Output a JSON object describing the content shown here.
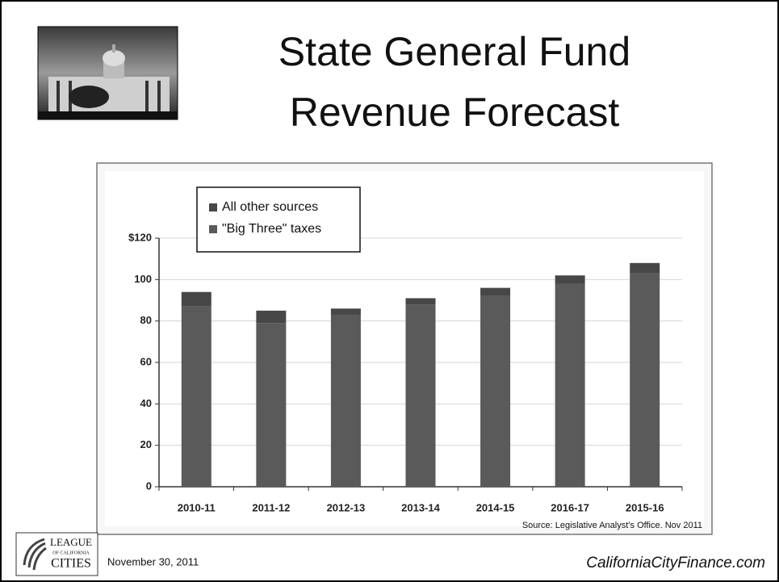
{
  "title": [
    "State General Fund",
    "Revenue Forecast"
  ],
  "chart_data": {
    "type": "bar",
    "stacked": true,
    "categories": [
      "2010-11",
      "2011-12",
      "2012-13",
      "2013-14",
      "2014-15",
      "2016-17",
      "2015-16"
    ],
    "series": [
      {
        "name": "\"Big Three\" taxes",
        "color": "#5a5a5a",
        "values": [
          87,
          79,
          83,
          88,
          92,
          98,
          103
        ]
      },
      {
        "name": "All other sources",
        "color": "#474747",
        "values": [
          7,
          6,
          3,
          3,
          4,
          4,
          5
        ]
      }
    ],
    "ylim": [
      0,
      120
    ],
    "yticks": [
      0,
      20,
      40,
      60,
      80,
      100,
      {
        "value": 120,
        "label": "$120"
      }
    ],
    "grid": true,
    "legend": "top-left",
    "source": "Source: Legislative Analyst’s Office. Nov 2011"
  },
  "footer": {
    "date": "November 30, 2011",
    "website": "CaliforniaCityFinance.com",
    "logo": [
      "LEAGUE",
      "OF CALIFORNIA",
      "CITIES"
    ]
  }
}
